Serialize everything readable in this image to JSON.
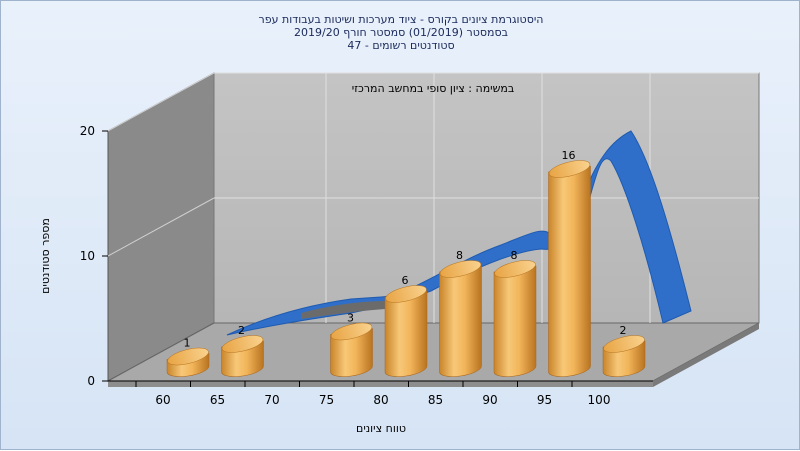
{
  "chart_data": {
    "type": "bar",
    "title_lines": [
      "היסטוגרמת ציונים בקורס - ציוד מערכות ושיטות בעבודות עפר",
      "בסמסטר  (01/2019)  סמסטר חורף  2019/20",
      "סטודנטים רשומים - 47"
    ],
    "annotation": "במשימה : ציון סופי במחשב המרכזי",
    "xlabel": "טווח ציונים",
    "ylabel": "מספר סטודנטים",
    "categories": [
      "60",
      "65",
      "70",
      "75",
      "80",
      "85",
      "90",
      "95",
      "100"
    ],
    "values": [
      1,
      2,
      0,
      3,
      6,
      8,
      8,
      16,
      2
    ],
    "data_labels": [
      "1",
      "2",
      "",
      "3",
      "6",
      "8",
      "8",
      "16",
      "2"
    ],
    "y_ticks": [
      "0",
      "10",
      "20"
    ],
    "ylim": [
      0,
      20
    ],
    "series_color": "#f0b24a",
    "curve_color": "#2f6fc9",
    "grid": true
  }
}
